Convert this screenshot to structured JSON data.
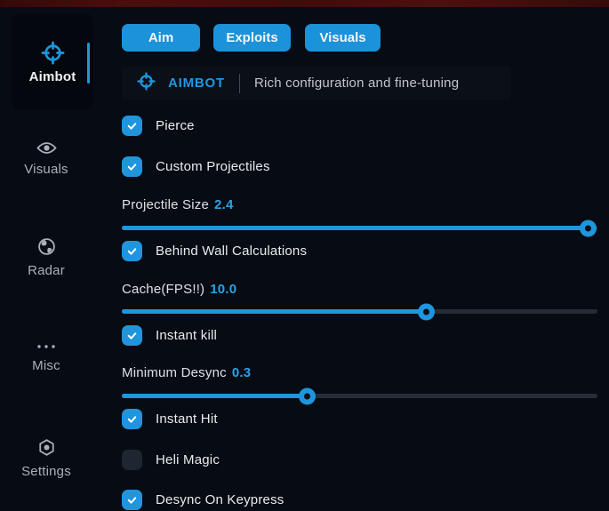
{
  "colors": {
    "accent_blue": "#1e96dd",
    "value_blue": "#2aa3e8",
    "top_strip_red": "#450d0d",
    "background": "#070b13"
  },
  "sidebar": {
    "items": [
      {
        "label": "Aimbot",
        "icon": "crosshair-icon",
        "active": true
      },
      {
        "label": "Visuals",
        "icon": "eye-icon",
        "active": false
      },
      {
        "label": "Radar",
        "icon": "globe-icon",
        "active": false
      },
      {
        "label": "Misc",
        "icon": "ellipsis-icon",
        "active": false
      },
      {
        "label": "Settings",
        "icon": "gear-icon",
        "active": false
      }
    ]
  },
  "tabs": [
    {
      "label": "Aim"
    },
    {
      "label": "Exploits"
    },
    {
      "label": "Visuals"
    }
  ],
  "header": {
    "title": "AIMBOT",
    "subtitle": "Rich configuration and fine-tuning"
  },
  "controls": [
    {
      "type": "checkbox",
      "label": "Pierce",
      "checked": true
    },
    {
      "type": "checkbox",
      "label": "Custom Projectiles",
      "checked": true
    },
    {
      "type": "slider",
      "label": "Projectile Size",
      "value": "2.4",
      "percent": 98
    },
    {
      "type": "checkbox",
      "label": "Behind Wall Calculations",
      "checked": true
    },
    {
      "type": "slider",
      "label": "Cache(FPS!!)",
      "value": "10.0",
      "percent": 64
    },
    {
      "type": "checkbox",
      "label": "Instant kill",
      "checked": true
    },
    {
      "type": "slider",
      "label": "Minimum Desync",
      "value": "0.3",
      "percent": 39
    },
    {
      "type": "checkbox",
      "label": "Instant Hit",
      "checked": true
    },
    {
      "type": "checkbox",
      "label": "Heli Magic",
      "checked": false
    },
    {
      "type": "checkbox",
      "label": "Desync On Keypress",
      "checked": true
    }
  ]
}
